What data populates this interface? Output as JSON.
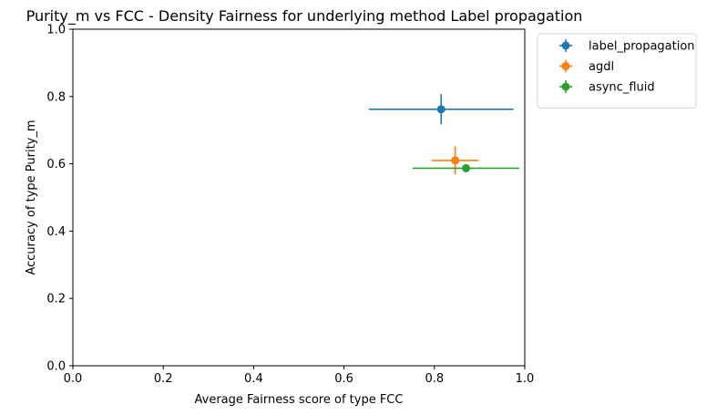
{
  "chart_data": {
    "type": "scatter",
    "title": "Purity_m vs FCC - Density Fairness for underlying method Label propagation",
    "xlabel": "Average Fairness score of type FCC",
    "ylabel": "Accuracy of type Purity_m",
    "xlim": [
      0.0,
      1.0
    ],
    "ylim": [
      0.0,
      1.0
    ],
    "xticks": [
      "0.0",
      "0.2",
      "0.4",
      "0.6",
      "0.8",
      "1.0"
    ],
    "yticks": [
      "0.0",
      "0.2",
      "0.4",
      "0.6",
      "0.8",
      "1.0"
    ],
    "grid": false,
    "legend_position": "upper-left-outside",
    "series": [
      {
        "name": "label_propagation",
        "color": "#1f77b4",
        "x": 0.815,
        "y": 0.762,
        "xerr": 0.16,
        "yerr": 0.045
      },
      {
        "name": "agdl",
        "color": "#ff7f0e",
        "x": 0.846,
        "y": 0.61,
        "xerr": 0.052,
        "yerr": 0.042
      },
      {
        "name": "async_fluid",
        "color": "#2ca02c",
        "x": 0.87,
        "y": 0.587,
        "xerr": 0.118,
        "yerr": 0.012
      }
    ]
  }
}
